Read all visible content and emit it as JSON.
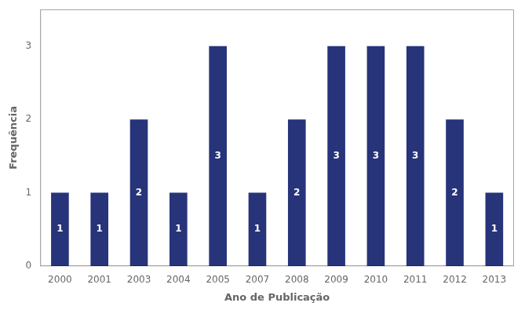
{
  "chart_data": {
    "type": "bar",
    "categories": [
      "2000",
      "2001",
      "2003",
      "2004",
      "2005",
      "2007",
      "2008",
      "2009",
      "2010",
      "2011",
      "2012",
      "2013"
    ],
    "values": [
      1,
      1,
      2,
      1,
      3,
      1,
      2,
      3,
      3,
      3,
      2,
      1
    ],
    "color": "#27347a",
    "xlabel": "Ano de Publicação",
    "ylabel": "Frequência",
    "ylim": [
      0,
      3.5
    ],
    "yticks": [
      0,
      1,
      2,
      3
    ],
    "grid": false,
    "data_labels": true
  }
}
